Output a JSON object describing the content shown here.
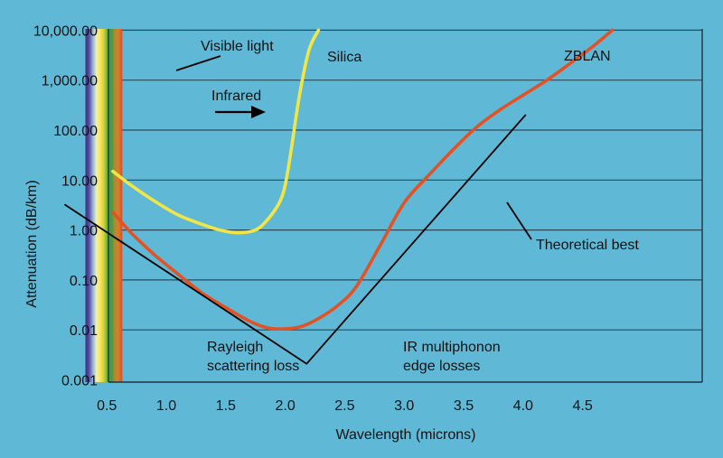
{
  "chart_data": {
    "type": "line",
    "title": "",
    "xlabel": "Wavelength (microns)",
    "ylabel": "Attenuation (dB/km)",
    "y_scale": "log",
    "grid": "horizontal",
    "xlim": [
      0.0,
      5.0
    ],
    "ylim": [
      0.001,
      10000
    ],
    "x_ticks": [
      {
        "v": 0.5,
        "label": "0.5"
      },
      {
        "v": 1.0,
        "label": "1.0"
      },
      {
        "v": 1.5,
        "label": "1.5"
      },
      {
        "v": 2.0,
        "label": "2.0"
      },
      {
        "v": 2.5,
        "label": "2.5"
      },
      {
        "v": 3.0,
        "label": "3.0"
      },
      {
        "v": 3.5,
        "label": "3.5"
      },
      {
        "v": 4.0,
        "label": "4.0"
      },
      {
        "v": 4.5,
        "label": "4.5"
      }
    ],
    "y_ticks": [
      {
        "v": 0.001,
        "label": "0.001"
      },
      {
        "v": 0.01,
        "label": "0.01"
      },
      {
        "v": 0.1,
        "label": "0.10"
      },
      {
        "v": 1,
        "label": "1.00"
      },
      {
        "v": 10,
        "label": "10.00"
      },
      {
        "v": 100,
        "label": "100.00"
      },
      {
        "v": 1000,
        "label": "1,000.00"
      },
      {
        "v": 10000,
        "label": "10,000.00"
      }
    ],
    "visible_band": {
      "x_start": 0.32,
      "x_end": 0.63,
      "colors": [
        "#3a2f7a",
        "#5a4aa0",
        "#8fb3d8",
        "#f3f0b0",
        "#ffe25a",
        "#c9d43a",
        "#5fae3a",
        "#3b9a4a",
        "#b78a30",
        "#e0782a",
        "#d0502a"
      ]
    },
    "series": [
      {
        "name": "Silica",
        "color": "#f2e646",
        "points": [
          [
            0.55,
            15
          ],
          [
            0.7,
            8
          ],
          [
            0.9,
            3.8
          ],
          [
            1.1,
            2.0
          ],
          [
            1.3,
            1.3
          ],
          [
            1.45,
            1.0
          ],
          [
            1.6,
            0.88
          ],
          [
            1.75,
            1.0
          ],
          [
            1.85,
            1.6
          ],
          [
            1.95,
            3.5
          ],
          [
            2.0,
            8
          ],
          [
            2.05,
            40
          ],
          [
            2.12,
            500
          ],
          [
            2.2,
            4000
          ],
          [
            2.28,
            10000
          ]
        ]
      },
      {
        "name": "ZBLAN",
        "color": "#e35224",
        "points": [
          [
            0.55,
            2.3
          ],
          [
            0.7,
            0.9
          ],
          [
            0.9,
            0.32
          ],
          [
            1.1,
            0.13
          ],
          [
            1.3,
            0.055
          ],
          [
            1.5,
            0.028
          ],
          [
            1.7,
            0.015
          ],
          [
            1.85,
            0.011
          ],
          [
            2.0,
            0.0105
          ],
          [
            2.15,
            0.012
          ],
          [
            2.3,
            0.018
          ],
          [
            2.45,
            0.032
          ],
          [
            2.6,
            0.075
          ],
          [
            2.8,
            0.5
          ],
          [
            3.0,
            3.5
          ],
          [
            3.2,
            12
          ],
          [
            3.4,
            38
          ],
          [
            3.6,
            110
          ],
          [
            3.8,
            250
          ],
          [
            4.0,
            500
          ],
          [
            4.2,
            1000
          ],
          [
            4.4,
            2200
          ],
          [
            4.6,
            5000
          ],
          [
            4.75,
            10000
          ]
        ]
      },
      {
        "name": "Theoretical best",
        "color": "#000000",
        "points": [
          [
            0.15,
            3.2
          ],
          [
            2.18,
            0.0021
          ],
          [
            4.02,
            200
          ]
        ]
      }
    ],
    "annotations": [
      {
        "id": "visible",
        "text": "Visible light"
      },
      {
        "id": "infrared",
        "text": "Infrared"
      },
      {
        "id": "silica",
        "text": "Silica"
      },
      {
        "id": "zblan",
        "text": "ZBLAN"
      },
      {
        "id": "theory",
        "text": "Theoretical best"
      },
      {
        "id": "rayleigh1",
        "text": "Rayleigh"
      },
      {
        "id": "rayleigh2",
        "text": "scattering loss"
      },
      {
        "id": "ir1",
        "text": "IR multiphonon"
      },
      {
        "id": "ir2",
        "text": "edge losses"
      }
    ]
  }
}
